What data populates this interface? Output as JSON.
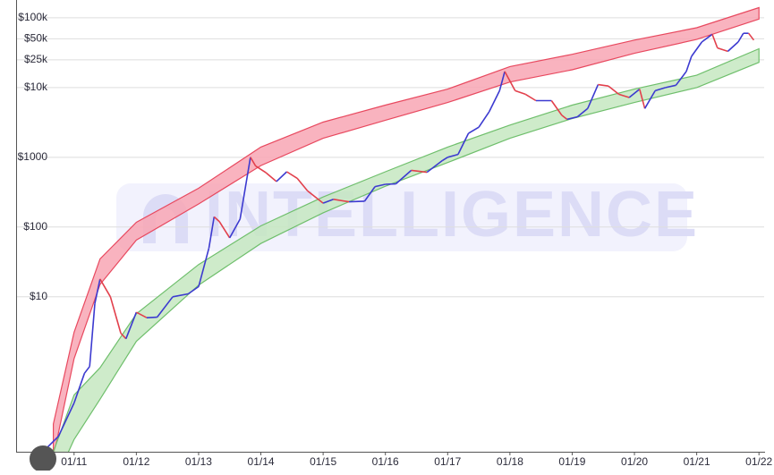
{
  "chart_data": {
    "type": "line",
    "log_scale": true,
    "grid": true,
    "watermark": "INTELLIGENCE",
    "xlim": [
      "2010-02",
      "2022-02"
    ],
    "xticks": [
      {
        "value": "2011-01",
        "label": "01/11"
      },
      {
        "value": "2012-01",
        "label": "01/12"
      },
      {
        "value": "2013-01",
        "label": "01/13"
      },
      {
        "value": "2014-01",
        "label": "01/14"
      },
      {
        "value": "2015-01",
        "label": "01/15"
      },
      {
        "value": "2016-01",
        "label": "01/16"
      },
      {
        "value": "2017-01",
        "label": "01/17"
      },
      {
        "value": "2018-01",
        "label": "01/18"
      },
      {
        "value": "2019-01",
        "label": "01/19"
      },
      {
        "value": "2020-01",
        "label": "01/20"
      },
      {
        "value": "2021-01",
        "label": "01/21"
      },
      {
        "value": "2022-01",
        "label": "01/22"
      }
    ],
    "ylim": [
      0.06,
      180000
    ],
    "yticks": [
      {
        "value": 100000,
        "label": "$100k"
      },
      {
        "value": 50000,
        "label": "$50k"
      },
      {
        "value": 25000,
        "label": "$25k"
      },
      {
        "value": 10000,
        "label": "$10k"
      },
      {
        "value": 1000,
        "label": "$1000"
      },
      {
        "value": 100,
        "label": "$100"
      },
      {
        "value": 10,
        "label": "$10"
      }
    ],
    "band_x": [
      "2010-09",
      "2011-01",
      "2011-06",
      "2012-01",
      "2013-01",
      "2014-01",
      "2015-01",
      "2016-01",
      "2017-01",
      "2018-01",
      "2019-01",
      "2020-01",
      "2021-01",
      "2022-01"
    ],
    "bands": [
      {
        "color": "#e8495f",
        "fill": "#f8a6b4",
        "upper": [
          0.15,
          3.1,
          35,
          117,
          360,
          1400,
          3200,
          5600,
          9500,
          20000,
          30000,
          48000,
          72000,
          140000
        ],
        "lower": [
          0.05,
          1.3,
          15,
          65,
          214,
          760,
          1870,
          3400,
          6100,
          12000,
          18000,
          31000,
          49000,
          96000
        ]
      },
      {
        "color": "#6fbf6c",
        "fill": "#c6e7c1",
        "upper": [
          0.06,
          0.39,
          0.96,
          5.7,
          29,
          104,
          270,
          620,
          1400,
          2900,
          5600,
          9500,
          15000,
          36000
        ],
        "lower": [
          0.02,
          0.09,
          0.34,
          2.3,
          14.7,
          58,
          160,
          385,
          840,
          1870,
          3600,
          6100,
          10000,
          23000
        ]
      }
    ],
    "up_color": "#3c3ad0",
    "down_color": "#e2404c",
    "x": [
      "2010-07",
      "2010-10",
      "2011-01",
      "2011-03",
      "2011-04",
      "2011-05",
      "2011-06",
      "2011-08",
      "2011-10",
      "2011-11",
      "2012-01",
      "2012-03",
      "2012-05",
      "2012-08",
      "2012-11",
      "2013-01",
      "2013-03",
      "2013-04",
      "2013-05",
      "2013-07",
      "2013-09",
      "2013-11",
      "2013-12",
      "2014-02",
      "2014-04",
      "2014-06",
      "2014-08",
      "2014-10",
      "2015-01",
      "2015-03",
      "2015-06",
      "2015-09",
      "2015-11",
      "2016-01",
      "2016-03",
      "2016-06",
      "2016-09",
      "2016-12",
      "2017-01",
      "2017-03",
      "2017-05",
      "2017-07",
      "2017-09",
      "2017-11",
      "2017-12",
      "2018-02",
      "2018-04",
      "2018-06",
      "2018-09",
      "2018-11",
      "2018-12",
      "2019-02",
      "2019-04",
      "2019-06",
      "2019-08",
      "2019-10",
      "2019-12",
      "2020-02",
      "2020-03",
      "2020-05",
      "2020-07",
      "2020-09",
      "2020-11",
      "2020-12",
      "2021-02",
      "2021-04",
      "2021-05",
      "2021-07",
      "2021-09",
      "2021-10",
      "2021-11",
      "2021-12"
    ],
    "values": [
      0.06,
      0.1,
      0.3,
      0.8,
      1.0,
      8,
      18,
      10,
      3,
      2.5,
      6,
      5,
      5.1,
      10,
      11,
      14,
      50,
      140,
      120,
      70,
      130,
      1000,
      750,
      600,
      450,
      620,
      500,
      330,
      220,
      250,
      230,
      235,
      380,
      410,
      415,
      650,
      610,
      900,
      1000,
      1100,
      2200,
      2700,
      4500,
      9000,
      17000,
      9000,
      8000,
      6500,
      6500,
      4000,
      3500,
      3800,
      5000,
      11000,
      10500,
      8000,
      7200,
      9500,
      5000,
      9000,
      10000,
      10800,
      17000,
      28000,
      45000,
      58000,
      37000,
      33000,
      45000,
      60000,
      60000,
      48000
    ]
  }
}
